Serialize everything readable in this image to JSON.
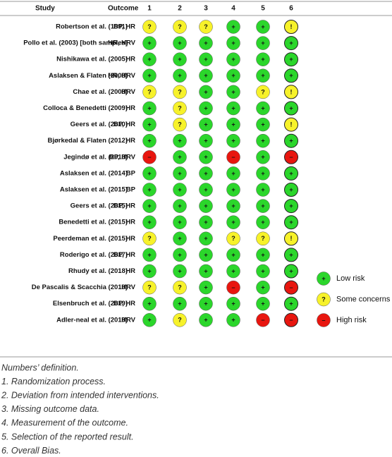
{
  "header": {
    "study": "Study",
    "outcome": "Outcome",
    "columns": [
      "1",
      "2",
      "3",
      "4",
      "5",
      "6"
    ]
  },
  "symbol_colors": {
    "+": "#2bd62b",
    "?": "#f7f22a",
    "!": "#f7f22a",
    "–": "#e8160f"
  },
  "rows": [
    {
      "study": "Robertson et al. (1991)",
      "outcome": "BP, HR",
      "judgments": [
        "?",
        "?",
        "?",
        "+",
        "+",
        "!"
      ]
    },
    {
      "study": "Pollo et al. (2003) [both samples]",
      "outcome": "HR, HRV",
      "judgments": [
        "+",
        "+",
        "+",
        "+",
        "+",
        "+"
      ]
    },
    {
      "study": "Nishikawa et al. (2005)",
      "outcome": "HR",
      "judgments": [
        "+",
        "+",
        "+",
        "+",
        "+",
        "+"
      ]
    },
    {
      "study": "Aslaksen & Flaten (2008)",
      "outcome": "HR, HRV",
      "judgments": [
        "+",
        "+",
        "+",
        "+",
        "+",
        "+"
      ]
    },
    {
      "study": "Chae et al. (2008)",
      "outcome": "HRV",
      "judgments": [
        "?",
        "?",
        "+",
        "+",
        "?",
        "!"
      ]
    },
    {
      "study": "Colloca & Benedetti (2009)",
      "outcome": "HR",
      "judgments": [
        "+",
        "?",
        "+",
        "+",
        "+",
        "+"
      ]
    },
    {
      "study": "Geers et al. (2010)",
      "outcome": "BP, HR",
      "judgments": [
        "+",
        "?",
        "+",
        "+",
        "+",
        "!"
      ]
    },
    {
      "study": "Bjørkedal & Flaten (2012)",
      "outcome": "HR",
      "judgments": [
        "+",
        "+",
        "+",
        "+",
        "+",
        "+"
      ]
    },
    {
      "study": "Jegindø et al. (2013)",
      "outcome": "BP, HRV",
      "judgments": [
        "–",
        "+",
        "+",
        "–",
        "+",
        "–"
      ]
    },
    {
      "study": "Aslaksen et al. (2014)",
      "outcome": "BP",
      "judgments": [
        "+",
        "+",
        "+",
        "+",
        "+",
        "+"
      ]
    },
    {
      "study": "Aslaksen et al. (2015)",
      "outcome": "BP",
      "judgments": [
        "+",
        "+",
        "+",
        "+",
        "+",
        "+"
      ]
    },
    {
      "study": "Geers et al. (2015)",
      "outcome": "BP, HR",
      "judgments": [
        "+",
        "+",
        "+",
        "+",
        "+",
        "+"
      ]
    },
    {
      "study": "Benedetti et al. (2015)",
      "outcome": "HR",
      "judgments": [
        "+",
        "+",
        "+",
        "+",
        "+",
        "+"
      ]
    },
    {
      "study": "Peerdeman et al. (2015)",
      "outcome": "HR",
      "judgments": [
        "?",
        "+",
        "+",
        "?",
        "?",
        "!"
      ]
    },
    {
      "study": "Roderigo et al. (2017)",
      "outcome": "BP, HR",
      "judgments": [
        "+",
        "+",
        "+",
        "+",
        "+",
        "+"
      ]
    },
    {
      "study": "Rhudy et al. (2018)",
      "outcome": "HR",
      "judgments": [
        "+",
        "+",
        "+",
        "+",
        "+",
        "+"
      ]
    },
    {
      "study": "De Pascalis & Scacchia (2019)",
      "outcome": "HRV",
      "judgments": [
        "?",
        "?",
        "+",
        "–",
        "+",
        "–"
      ]
    },
    {
      "study": "Elsenbruch et al. (2019)",
      "outcome": "BP, HR",
      "judgments": [
        "+",
        "+",
        "+",
        "+",
        "+",
        "+"
      ]
    },
    {
      "study": "Adler-neal et al. (2019)",
      "outcome": "HRV",
      "judgments": [
        "+",
        "?",
        "+",
        "+",
        "–",
        "–"
      ]
    }
  ],
  "legend": [
    {
      "symbol": "+",
      "label": "Low risk"
    },
    {
      "symbol": "?",
      "label": "Some concerns"
    },
    {
      "symbol": "–",
      "label": "High risk"
    }
  ],
  "footnotes": [
    "Numbers’ definition.",
    "1. Randomization process.",
    "2. Deviation from intended interventions.",
    "3. Missing outcome data.",
    "4. Measurement of the outcome.",
    "5. Selection of the reported result.",
    "6. Overall Bias."
  ]
}
